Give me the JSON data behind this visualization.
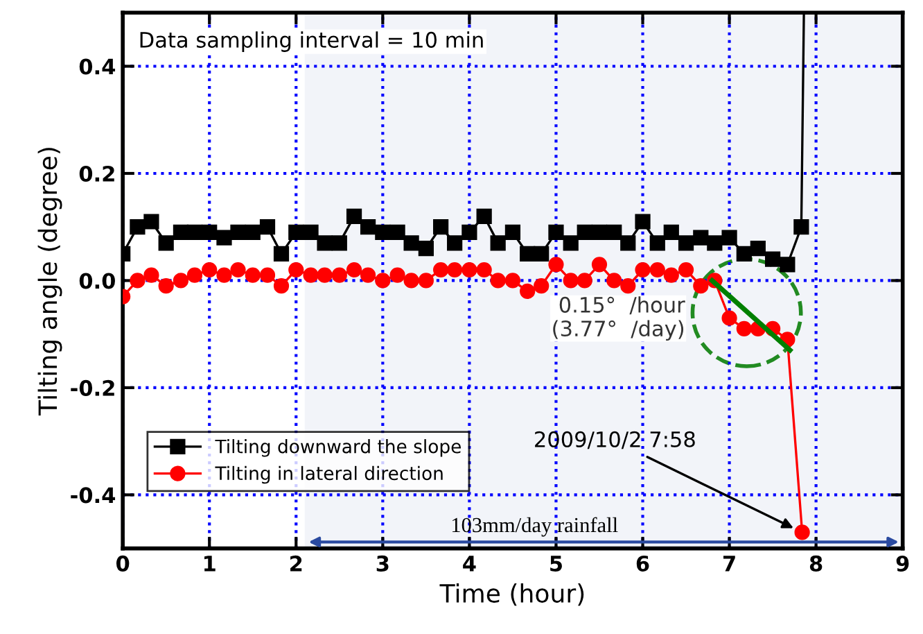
{
  "chart_data": {
    "type": "line",
    "xlabel": "Time (hour)",
    "ylabel": "Tilting angle (degree)",
    "xlim": [
      0,
      9
    ],
    "ylim": [
      -0.5,
      0.5
    ],
    "xticks": [
      0,
      1,
      2,
      3,
      4,
      5,
      6,
      7,
      8,
      9
    ],
    "yticks": [
      {
        "value": -0.4,
        "label": "-0.4"
      },
      {
        "value": -0.2,
        "label": "-0.2"
      },
      {
        "value": 0,
        "label": "0.0"
      },
      {
        "value": 0.2,
        "label": "0.2"
      },
      {
        "value": 0.4,
        "label": "0.4"
      }
    ],
    "grid": true,
    "legend": "bottom left",
    "series": [
      {
        "name": "Tilting downward the slope",
        "color": "#000000",
        "marker": "square",
        "x": [
          0,
          0.17,
          0.33,
          0.5,
          0.67,
          0.83,
          1.0,
          1.17,
          1.33,
          1.5,
          1.67,
          1.83,
          2.0,
          2.17,
          2.33,
          2.5,
          2.67,
          2.83,
          3.0,
          3.17,
          3.33,
          3.5,
          3.67,
          3.83,
          4.0,
          4.17,
          4.33,
          4.5,
          4.67,
          4.83,
          5.0,
          5.17,
          5.33,
          5.5,
          5.67,
          5.83,
          6.0,
          6.17,
          6.33,
          6.5,
          6.67,
          6.83,
          7.0,
          7.17,
          7.33,
          7.5,
          7.67,
          7.83,
          7.86
        ],
        "values": [
          0.05,
          0.1,
          0.11,
          0.07,
          0.09,
          0.09,
          0.09,
          0.08,
          0.09,
          0.09,
          0.1,
          0.05,
          0.09,
          0.09,
          0.07,
          0.07,
          0.12,
          0.1,
          0.09,
          0.09,
          0.07,
          0.06,
          0.1,
          0.07,
          0.09,
          0.12,
          0.07,
          0.09,
          0.05,
          0.05,
          0.09,
          0.07,
          0.09,
          0.09,
          0.09,
          0.07,
          0.11,
          0.07,
          0.09,
          0.07,
          0.08,
          0.07,
          0.08,
          0.05,
          0.06,
          0.04,
          0.03,
          0.1,
          0.5
        ]
      },
      {
        "name": "Tilting in lateral direction",
        "color": "#ff0000",
        "marker": "circle",
        "x": [
          0,
          0.17,
          0.33,
          0.5,
          0.67,
          0.83,
          1.0,
          1.17,
          1.33,
          1.5,
          1.67,
          1.83,
          2.0,
          2.17,
          2.33,
          2.5,
          2.67,
          2.83,
          3.0,
          3.17,
          3.33,
          3.5,
          3.67,
          3.83,
          4.0,
          4.17,
          4.33,
          4.5,
          4.67,
          4.83,
          5.0,
          5.17,
          5.33,
          5.5,
          5.67,
          5.83,
          6.0,
          6.17,
          6.33,
          6.5,
          6.67,
          6.83,
          7.0,
          7.17,
          7.33,
          7.5,
          7.67,
          7.84
        ],
        "values": [
          -0.03,
          0.0,
          0.01,
          -0.01,
          0.0,
          0.01,
          0.02,
          0.01,
          0.02,
          0.01,
          0.01,
          -0.01,
          0.02,
          0.01,
          0.01,
          0.01,
          0.02,
          0.01,
          0.0,
          0.01,
          0.0,
          0.0,
          0.02,
          0.02,
          0.02,
          0.02,
          0.0,
          0.0,
          -0.02,
          -0.01,
          0.03,
          0.0,
          0.0,
          0.03,
          0.0,
          -0.01,
          0.02,
          0.02,
          0.01,
          0.02,
          -0.01,
          0.0,
          -0.07,
          -0.09,
          -0.09,
          -0.09,
          -0.11,
          -0.47
        ]
      },
      {
        "color": "#008000",
        "marker": "none",
        "x": [
          6.8,
          7.7
        ],
        "values": [
          0.0,
          -0.13
        ]
      }
    ],
    "bands": [
      {
        "axis": "x",
        "from": 2.1,
        "to": 9,
        "label": "103mm/day rainfall",
        "color": "#2a4aa0"
      }
    ],
    "annotations": [
      "Data sampling interval = 10 min",
      {
        "text": "0.15°  /hour\n(3.77°  /day)",
        "x": 7.2,
        "y": -0.06
      },
      {
        "text": "2009/10/2 7:58",
        "x": 7.84,
        "y": -0.47
      }
    ]
  }
}
